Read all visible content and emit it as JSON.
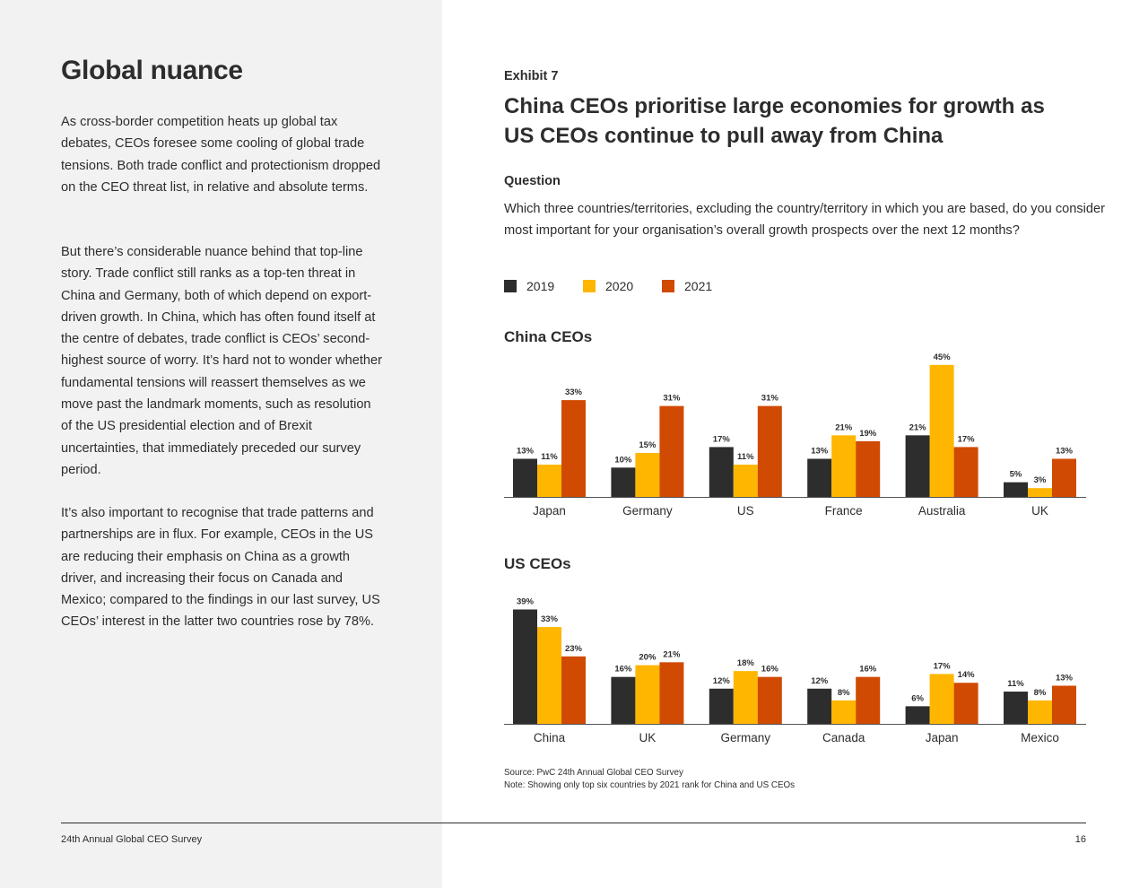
{
  "left": {
    "title": "Global nuance",
    "paragraphs": [
      "As cross-border competition heats up global tax debates, CEOs foresee some cooling of global trade tensions. Both trade conflict and protectionism dropped on the CEO threat list, in relative and absolute terms.",
      "But there’s considerable nuance behind that top-line story. Trade conflict still ranks as a top-ten threat in China and Germany, both of which depend on export-driven growth. In China, which has often found itself at the centre of debates, trade conflict is CEOs’ second-highest source of worry. It’s hard not to wonder whether fundamental tensions will reassert themselves as we move past the landmark moments, such as resolution of the US presidential election and of Brexit uncertainties, that immediately preceded our survey period.",
      "It’s also important to recognise that trade patterns and partnerships are in flux. For example, CEOs in the US are reducing their emphasis on China as a growth driver, and increasing their focus on Canada and Mexico; compared to the findings in our last survey, US CEOs’ interest in the latter two countries rose by 78%."
    ]
  },
  "exhibit": {
    "label": "Exhibit 7",
    "title": "China CEOs prioritise large economies for growth as US CEOs continue to pull away from China",
    "question_label": "Question",
    "question_text": "Which three countries/territories, excluding the country/territory in which you are based, do you consider most important for your organisation’s overall growth prospects over the next 12 months?"
  },
  "legend": [
    {
      "label": "2019",
      "color": "#2d2d2d"
    },
    {
      "label": "2020",
      "color": "#ffb600"
    },
    {
      "label": "2021",
      "color": "#d04a02"
    }
  ],
  "chart_data": [
    {
      "type": "bar",
      "title": "China CEOs",
      "categories": [
        "Japan",
        "Germany",
        "US",
        "France",
        "Australia",
        "UK"
      ],
      "series": [
        {
          "name": "2019",
          "values": [
            13,
            10,
            17,
            13,
            21,
            5
          ]
        },
        {
          "name": "2020",
          "values": [
            11,
            15,
            11,
            21,
            45,
            3
          ]
        },
        {
          "name": "2021",
          "values": [
            33,
            31,
            31,
            19,
            17,
            13
          ]
        }
      ],
      "unit": "%",
      "ylim": [
        0,
        45
      ],
      "grid": false,
      "legend_position": "top-left"
    },
    {
      "type": "bar",
      "title": "US CEOs",
      "categories": [
        "China",
        "UK",
        "Germany",
        "Canada",
        "Japan",
        "Mexico"
      ],
      "series": [
        {
          "name": "2019",
          "values": [
            39,
            16,
            12,
            12,
            6,
            11
          ]
        },
        {
          "name": "2020",
          "values": [
            33,
            20,
            18,
            8,
            17,
            8
          ]
        },
        {
          "name": "2021",
          "values": [
            23,
            21,
            16,
            16,
            14,
            13
          ]
        }
      ],
      "unit": "%",
      "ylim": [
        0,
        39
      ],
      "grid": false,
      "legend_position": "top-left"
    }
  ],
  "source": {
    "source_line": "Source: PwC 24th Annual Global CEO Survey",
    "note_line": "Note: Showing only top six countries by 2021 rank for China and US CEOs"
  },
  "footer": {
    "left": "24th Annual Global CEO Survey",
    "page_number": "16"
  }
}
